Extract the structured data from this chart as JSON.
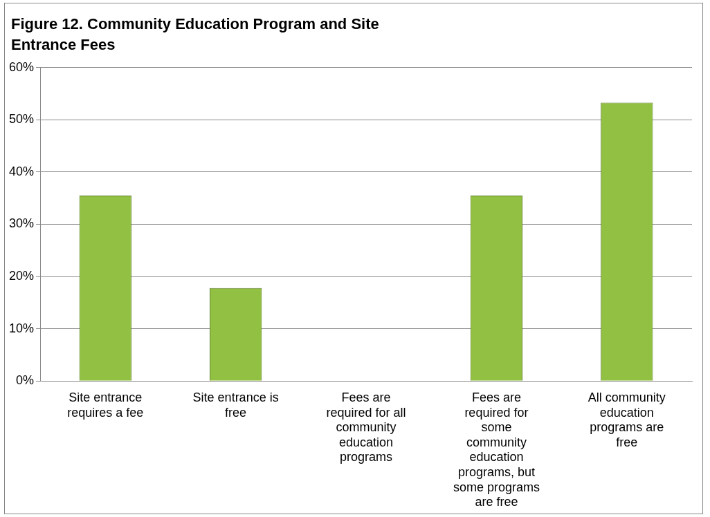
{
  "chart_data": {
    "type": "bar",
    "title": "Figure 12. Community Education Program and Site Entrance Fees",
    "categories": [
      "Site entrance requires a fee",
      "Site entrance is free",
      "Fees are required for all community education programs",
      "Fees are required for some community education programs, but some programs are free",
      "All community education programs are free"
    ],
    "values": [
      35.5,
      17.8,
      0,
      35.5,
      53.3
    ],
    "color": "#92c043",
    "ylim": [
      0,
      60
    ],
    "yticks": [
      {
        "value": 0,
        "label": "0%"
      },
      {
        "value": 10,
        "label": "10%"
      },
      {
        "value": 20,
        "label": "20%"
      },
      {
        "value": 30,
        "label": "30%"
      },
      {
        "value": 40,
        "label": "40%"
      },
      {
        "value": 50,
        "label": "50%"
      },
      {
        "value": 60,
        "label": "60%"
      }
    ],
    "grid": "y"
  }
}
